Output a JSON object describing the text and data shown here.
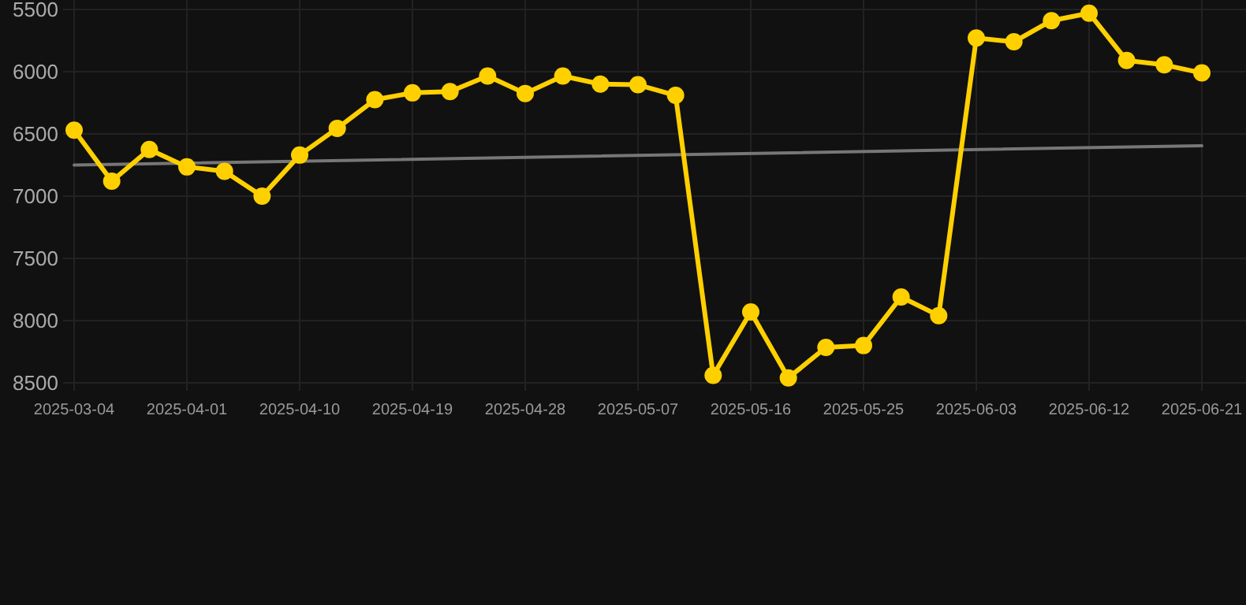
{
  "chart_data": {
    "type": "line",
    "categories": [
      "2025-03-04",
      null,
      null,
      "2025-04-01",
      null,
      null,
      "2025-04-10",
      null,
      null,
      "2025-04-19",
      null,
      null,
      "2025-04-28",
      null,
      null,
      "2025-05-07",
      null,
      null,
      "2025-05-16",
      null,
      null,
      "2025-05-25",
      null,
      null,
      "2025-06-03",
      null,
      null,
      "2025-06-12",
      null,
      null,
      "2025-06-21"
    ],
    "series": [
      {
        "color": "#ffd000",
        "marker": "circle",
        "values": [
          6470,
          6880,
          6625,
          6765,
          6800,
          7000,
          6670,
          6455,
          6225,
          6170,
          6160,
          6035,
          6175,
          6035,
          6100,
          6105,
          6190,
          8440,
          7930,
          8460,
          8215,
          8200,
          7810,
          7960,
          5730,
          5760,
          5590,
          5530,
          5910,
          5945,
          6010
        ]
      },
      {
        "color": "#777777",
        "marker": "none",
        "values": [
          6750,
          null,
          null,
          null,
          null,
          null,
          null,
          null,
          null,
          null,
          null,
          null,
          null,
          null,
          null,
          null,
          null,
          null,
          null,
          null,
          null,
          null,
          null,
          null,
          null,
          null,
          null,
          null,
          null,
          null,
          6595
        ]
      }
    ],
    "ylim": [
      8500,
      5500
    ],
    "yticks": [
      5500,
      6000,
      6500,
      7000,
      7500,
      8000,
      8500
    ],
    "grid": true
  }
}
